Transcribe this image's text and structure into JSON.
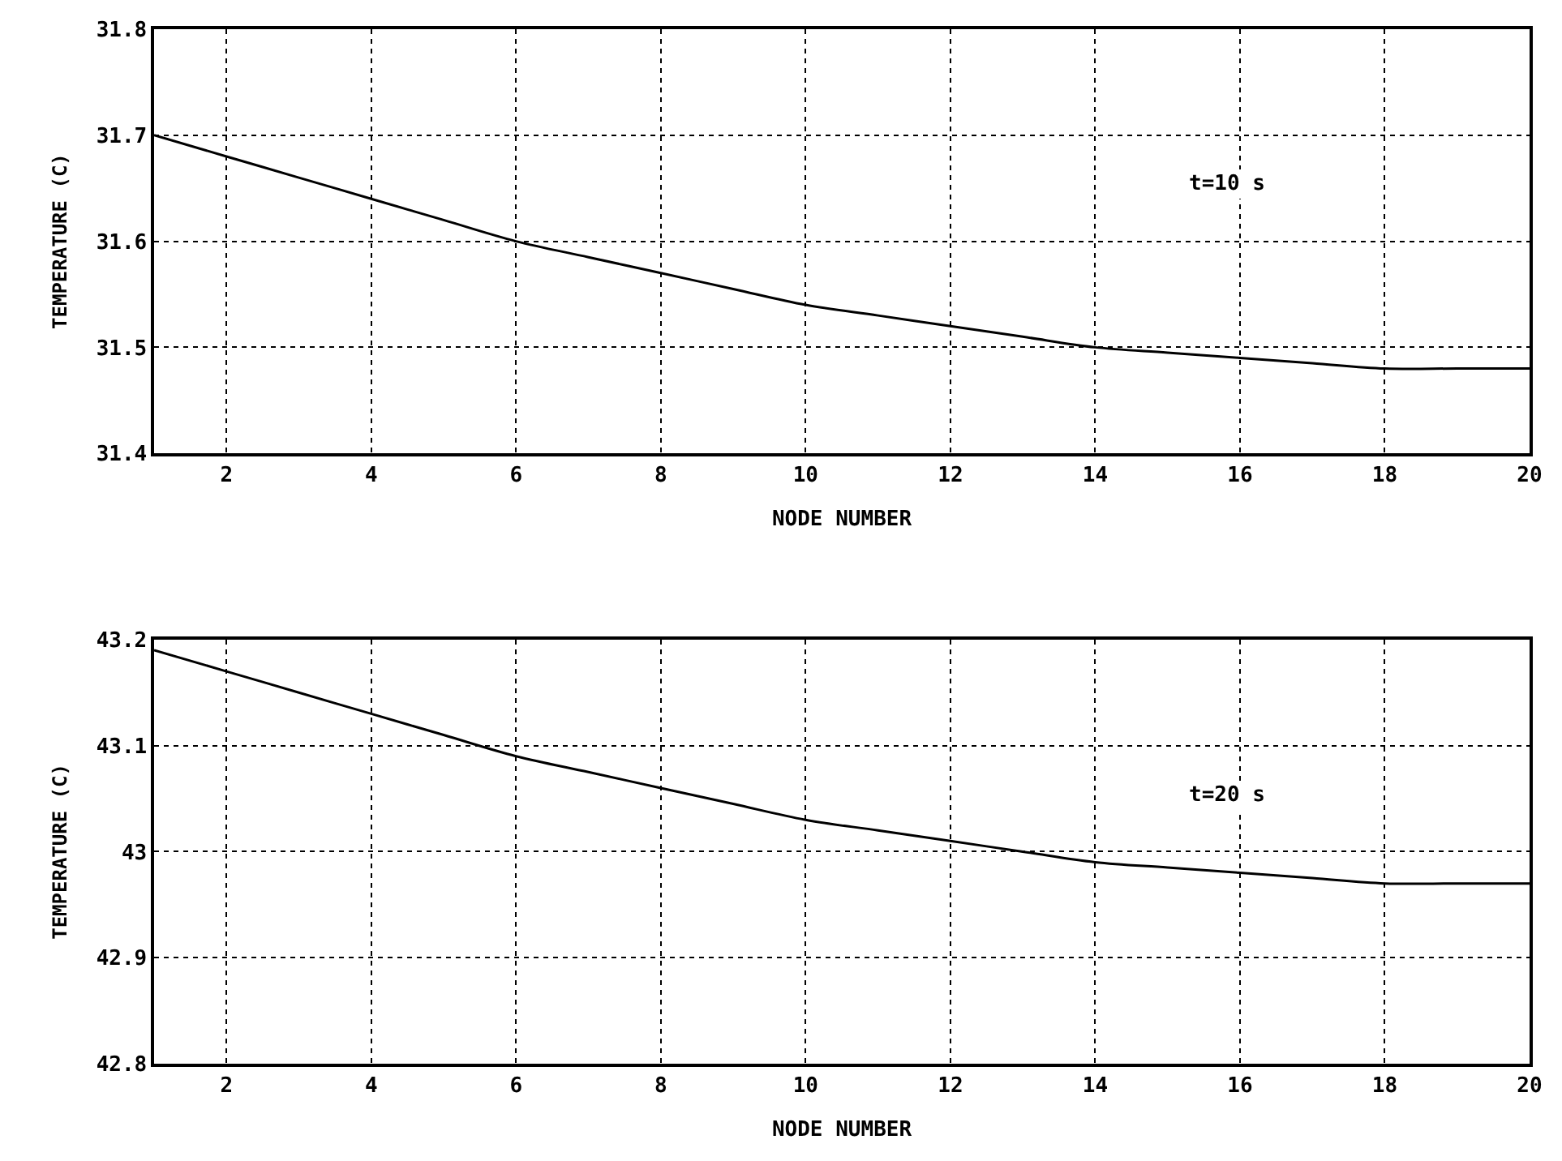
{
  "chart_data": [
    {
      "type": "line",
      "xlabel": "NODE NUMBER",
      "ylabel": "TEMPERATURE (C)",
      "annotations": [
        "t=10 s"
      ],
      "x": [
        1,
        2,
        3,
        4,
        5,
        6,
        7,
        8,
        9,
        10,
        11,
        12,
        13,
        14,
        15,
        16,
        17,
        18,
        19,
        20
      ],
      "series": [
        {
          "color": "#000000",
          "values": [
            31.7,
            31.68,
            31.66,
            31.64,
            31.62,
            31.6,
            31.585,
            31.57,
            31.555,
            31.54,
            31.53,
            31.52,
            31.51,
            31.5,
            31.495,
            31.49,
            31.485,
            31.48,
            31.48,
            31.48
          ]
        }
      ],
      "xlim": [
        1,
        20
      ],
      "xticks": [
        2,
        4,
        6,
        8,
        10,
        12,
        14,
        16,
        18,
        20
      ],
      "ylim": [
        31.4,
        31.8
      ],
      "yticks": [
        31.4,
        31.5,
        31.6,
        31.7,
        31.8
      ],
      "grid": true,
      "line_style": "solid"
    },
    {
      "type": "line",
      "xlabel": "NODE NUMBER",
      "ylabel": "TEMPERATURE (C)",
      "annotations": [
        "t=20 s"
      ],
      "x": [
        1,
        2,
        3,
        4,
        5,
        6,
        7,
        8,
        9,
        10,
        11,
        12,
        13,
        14,
        15,
        16,
        17,
        18,
        19,
        20
      ],
      "series": [
        {
          "color": "#000000",
          "values": [
            43.19,
            43.17,
            43.15,
            43.13,
            43.11,
            43.09,
            43.075,
            43.06,
            43.045,
            43.03,
            43.02,
            43.01,
            43.0,
            42.99,
            42.985,
            42.98,
            42.975,
            42.97,
            42.97,
            42.97
          ]
        }
      ],
      "xlim": [
        1,
        20
      ],
      "xticks": [
        2,
        4,
        6,
        8,
        10,
        12,
        14,
        16,
        18,
        20
      ],
      "ylim": [
        42.8,
        43.2
      ],
      "yticks": [
        42.8,
        42.9,
        {
          "value": 43.0,
          "label": "43"
        },
        43.1,
        43.2
      ],
      "grid": true,
      "line_style": "solid"
    }
  ]
}
